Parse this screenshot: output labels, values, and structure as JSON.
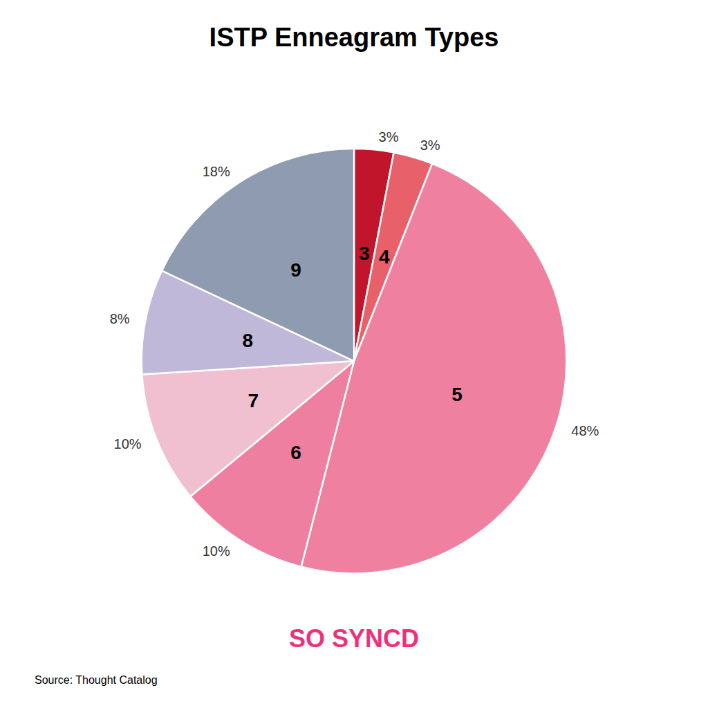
{
  "chart_data": {
    "type": "pie",
    "title": "ISTP Enneagram Types",
    "categories": [
      "3",
      "4",
      "5",
      "6",
      "7",
      "8",
      "9"
    ],
    "values": [
      3,
      3,
      48,
      10,
      10,
      8,
      18
    ],
    "value_labels": [
      "3%",
      "3%",
      "48%",
      "10%",
      "10%",
      "8%",
      "18%"
    ],
    "colors": [
      "#C0152A",
      "#E8606A",
      "#F080A0",
      "#EE7FA0",
      "#F0C0D0",
      "#C0B8D8",
      "#8E9BB0"
    ],
    "annotations": [
      {
        "text": "SO SYNCD",
        "color": "#F0307A"
      },
      {
        "text": "Source: Thought Catalog"
      }
    ]
  }
}
